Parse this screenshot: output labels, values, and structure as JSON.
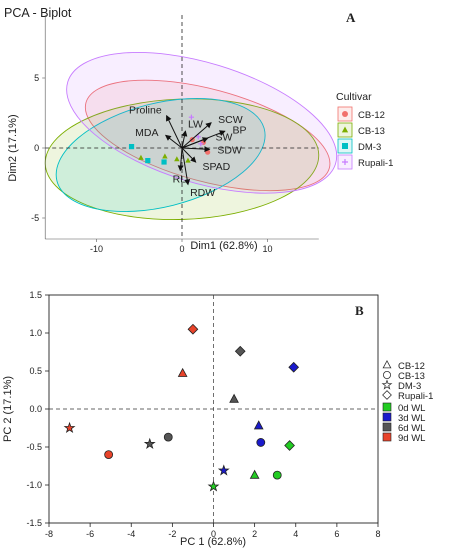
{
  "chart_data": [
    {
      "type": "scatter",
      "title": "PCA - Biplot",
      "panel_label": "A",
      "xlabel": "Dim1 (62.8%)",
      "ylabel": "Dim2 (17.1%)",
      "xlim": [
        -16,
        16
      ],
      "ylim": [
        -6.5,
        9.5
      ],
      "x_ticks": [
        -10,
        0,
        10
      ],
      "y_ticks": [
        -5,
        0,
        5
      ],
      "grid": false,
      "legend_title": "Cultivar",
      "legend_position": "right",
      "series": [
        {
          "name": "CB-12",
          "color": "#f1716c",
          "marker": "circle",
          "points": [
            [
              1.2,
              0.6
            ],
            [
              2.5,
              0.4
            ],
            [
              3.0,
              -0.3
            ]
          ],
          "ellipse": {
            "cx": 3.0,
            "cy": 0.9,
            "rx": 5.4,
            "ry": 9.0,
            "angle": -75
          }
        },
        {
          "name": "CB-13",
          "color": "#7cae00",
          "marker": "triangle",
          "points": [
            [
              -0.6,
              -0.8
            ],
            [
              0.7,
              -0.9
            ],
            [
              -4.8,
              -0.7
            ],
            [
              -2.0,
              -0.6
            ]
          ],
          "ellipse": {
            "cx": 0.0,
            "cy": -0.8,
            "rx": 16.0,
            "ry": 4.3,
            "angle": -2
          }
        },
        {
          "name": "DM-3",
          "color": "#00bfc4",
          "marker": "square",
          "points": [
            [
              -5.9,
              0.1
            ],
            [
              -2.1,
              -1.0
            ],
            [
              -4.0,
              -0.9
            ]
          ],
          "ellipse": {
            "cx": -2.5,
            "cy": -0.5,
            "rx": 12.5,
            "ry": 3.7,
            "angle": -14
          }
        },
        {
          "name": "Rupali-1",
          "color": "#c77cff",
          "marker": "plus",
          "points": [
            [
              1.1,
              2.2
            ],
            [
              2.2,
              0.3
            ],
            [
              1.9,
              0.8
            ]
          ],
          "ellipse": {
            "cx": 2.3,
            "cy": 1.8,
            "rx": 7.0,
            "ry": 10.0,
            "angle": -73
          }
        }
      ],
      "arrows": [
        {
          "label": "Proline",
          "x": -1.8,
          "y": 2.3
        },
        {
          "label": "MDA",
          "x": -1.9,
          "y": 0.9
        },
        {
          "label": "LW",
          "x": 0.4,
          "y": 1.2
        },
        {
          "label": "SCW",
          "x": 3.4,
          "y": 1.8
        },
        {
          "label": "BP",
          "x": 5.0,
          "y": 1.2
        },
        {
          "label": "SW",
          "x": 3.0,
          "y": 0.7
        },
        {
          "label": "SDW",
          "x": 3.2,
          "y": -0.1
        },
        {
          "label": "SPAD",
          "x": 1.6,
          "y": -1.0
        },
        {
          "label": "RL",
          "x": -0.2,
          "y": -1.6
        },
        {
          "label": "RDW",
          "x": 0.7,
          "y": -2.6
        }
      ]
    },
    {
      "type": "scatter",
      "panel_label": "B",
      "xlabel": "PC 1 (62.8%)",
      "ylabel": "PC 2 (17.1%)",
      "xlim": [
        -8,
        8
      ],
      "ylim": [
        -1.5,
        1.5
      ],
      "x_ticks": [
        -8,
        -6,
        -4,
        -2,
        0,
        2,
        4,
        6,
        8
      ],
      "y_ticks": [
        -1.5,
        -1.0,
        -0.5,
        0.0,
        0.5,
        1.0,
        1.5
      ],
      "x_tick_labels": [
        "-8",
        "-6",
        "-4",
        "-2",
        "0",
        "2",
        "4",
        "6",
        "8"
      ],
      "y_tick_labels": [
        "-1.5",
        "-1.0",
        "-0.5",
        "0.0",
        "0.5",
        "1.0",
        "1.5"
      ],
      "grid": false,
      "legend_position": "right",
      "cultivar_legend": [
        {
          "label": "CB-12",
          "marker": "triangle"
        },
        {
          "label": "CB-13",
          "marker": "circle"
        },
        {
          "label": "DM-3",
          "marker": "star"
        },
        {
          "label": "Rupali-1",
          "marker": "diamond"
        }
      ],
      "stage_legend": [
        {
          "label": "0d WL",
          "color": "#22cc22"
        },
        {
          "label": "3d WL",
          "color": "#1a1acc"
        },
        {
          "label": "6d WL",
          "color": "#555555"
        },
        {
          "label": "9d WL",
          "color": "#e8432a"
        }
      ],
      "points": [
        {
          "cultivar": "CB-12",
          "stage": "0d WL",
          "x": 2.0,
          "y": -0.87
        },
        {
          "cultivar": "CB-12",
          "stage": "3d WL",
          "x": 2.2,
          "y": -0.22
        },
        {
          "cultivar": "CB-12",
          "stage": "6d WL",
          "x": 1.0,
          "y": 0.13
        },
        {
          "cultivar": "CB-12",
          "stage": "9d WL",
          "x": -1.5,
          "y": 0.47
        },
        {
          "cultivar": "CB-13",
          "stage": "0d WL",
          "x": 3.1,
          "y": -0.87
        },
        {
          "cultivar": "CB-13",
          "stage": "3d WL",
          "x": 2.3,
          "y": -0.44
        },
        {
          "cultivar": "CB-13",
          "stage": "6d WL",
          "x": -2.2,
          "y": -0.37
        },
        {
          "cultivar": "CB-13",
          "stage": "9d WL",
          "x": -5.1,
          "y": -0.6
        },
        {
          "cultivar": "DM-3",
          "stage": "0d WL",
          "x": 0.0,
          "y": -1.02
        },
        {
          "cultivar": "DM-3",
          "stage": "3d WL",
          "x": 0.5,
          "y": -0.81
        },
        {
          "cultivar": "DM-3",
          "stage": "6d WL",
          "x": -3.1,
          "y": -0.46
        },
        {
          "cultivar": "DM-3",
          "stage": "9d WL",
          "x": -7.0,
          "y": -0.25
        },
        {
          "cultivar": "Rupali-1",
          "stage": "0d WL",
          "x": 3.7,
          "y": -0.48
        },
        {
          "cultivar": "Rupali-1",
          "stage": "3d WL",
          "x": 3.9,
          "y": 0.55
        },
        {
          "cultivar": "Rupali-1",
          "stage": "6d WL",
          "x": 1.3,
          "y": 0.76
        },
        {
          "cultivar": "Rupali-1",
          "stage": "9d WL",
          "x": -1.0,
          "y": 1.05
        }
      ]
    }
  ]
}
